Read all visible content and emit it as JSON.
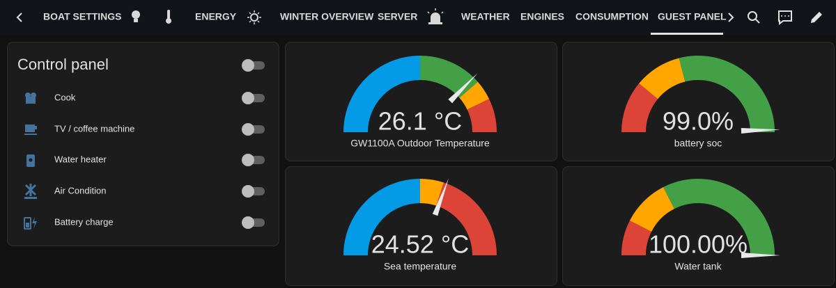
{
  "toolbar": {
    "tabs": [
      "BOAT SETTINGS",
      "ENERGY",
      "WINTER OVERVIEW",
      "SERVER",
      "WEATHER",
      "ENGINES",
      "CONSUMPTION",
      "GUEST PANEL"
    ]
  },
  "control_panel": {
    "title": "Control panel",
    "items": [
      "Cook",
      "TV / coffee machine",
      "Water heater",
      "Air Condition",
      "Battery charge"
    ]
  },
  "gauges": [
    {
      "name": "GW1100A Outdoor Temperature",
      "value": 26.1,
      "value_label": "26.1 °C",
      "min": 0,
      "max": 35,
      "segments": [
        {
          "from": 0,
          "to": 17.5,
          "color": "#039be5"
        },
        {
          "from": 17.5,
          "to": 27,
          "color": "#43a047"
        },
        {
          "from": 27,
          "to": 30,
          "color": "#ffa600"
        },
        {
          "from": 30,
          "to": 35,
          "color": "#db4437"
        }
      ]
    },
    {
      "name": "battery soc",
      "value": 99.0,
      "value_label": "99.0%",
      "min": 0,
      "max": 100,
      "segments": [
        {
          "from": 0,
          "to": 22,
          "color": "#db4437"
        },
        {
          "from": 22,
          "to": 42,
          "color": "#ffa600"
        },
        {
          "from": 42,
          "to": 100,
          "color": "#43a047"
        }
      ]
    },
    {
      "name": "Sea temperature",
      "value": 24.52,
      "value_label": "24.52 °C",
      "min": 0,
      "max": 40,
      "segments": [
        {
          "from": 0,
          "to": 20,
          "color": "#039be5"
        },
        {
          "from": 20,
          "to": 24,
          "color": "#ffa600"
        },
        {
          "from": 24,
          "to": 40,
          "color": "#db4437"
        }
      ]
    },
    {
      "name": "Water tank",
      "value": 100,
      "value_label": "100.00%",
      "min": 0,
      "max": 100,
      "segments": [
        {
          "from": 0,
          "to": 15,
          "color": "#db4437"
        },
        {
          "from": 15,
          "to": 35,
          "color": "#ffa600"
        },
        {
          "from": 35,
          "to": 100,
          "color": "#43a047"
        }
      ]
    }
  ]
}
